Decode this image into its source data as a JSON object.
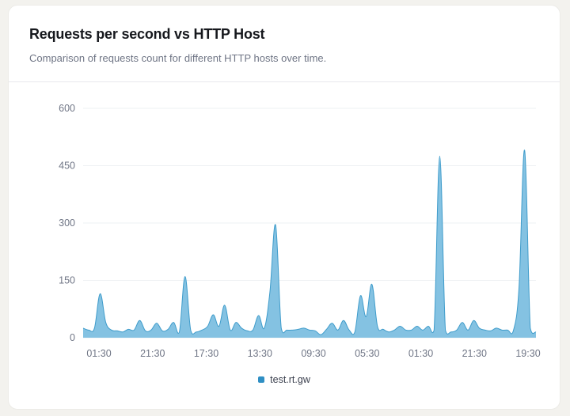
{
  "header": {
    "title": "Requests per second vs HTTP Host",
    "subtitle": "Comparison of requests count for different HTTP hosts over time."
  },
  "colors": {
    "series_fill": "#7dbfe0",
    "series_stroke": "#3f9ccb",
    "legend_swatch": "#2f8fc4",
    "grid": "#eef0f3"
  },
  "chart_data": {
    "type": "area",
    "title": "Requests per second vs HTTP Host",
    "xlabel": "",
    "ylabel": "",
    "ylim": [
      0,
      600
    ],
    "y_ticks": [
      0,
      150,
      300,
      450,
      600
    ],
    "x_tick_labels": [
      "01:30",
      "21:30",
      "17:30",
      "13:30",
      "09:30",
      "05:30",
      "01:30",
      "21:30",
      "19:30"
    ],
    "grid": true,
    "legend_position": "bottom-center",
    "series": [
      {
        "name": "test.rt.gw",
        "values": [
          25,
          20,
          25,
          115,
          40,
          20,
          18,
          15,
          22,
          20,
          45,
          18,
          20,
          38,
          18,
          22,
          40,
          15,
          160,
          20,
          15,
          20,
          30,
          60,
          30,
          85,
          20,
          40,
          25,
          18,
          20,
          58,
          25,
          120,
          295,
          25,
          20,
          20,
          22,
          25,
          20,
          18,
          8,
          22,
          38,
          20,
          45,
          20,
          15,
          110,
          55,
          140,
          30,
          22,
          15,
          20,
          30,
          20,
          20,
          30,
          20,
          30,
          20,
          475,
          20,
          15,
          20,
          40,
          20,
          45,
          25,
          20,
          18,
          25,
          20,
          20,
          18,
          130,
          490,
          25,
          15
        ]
      }
    ]
  },
  "legend": {
    "series_label": "test.rt.gw"
  }
}
